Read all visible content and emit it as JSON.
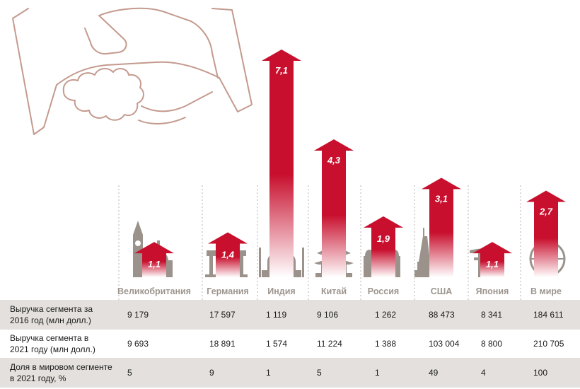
{
  "colors": {
    "arrow_top": "#c8102e",
    "arrow_bottom": "#ffffff",
    "icon": "#9a928b",
    "outline": "#c49a8e",
    "table_band": "#e3e0dd"
  },
  "icons": {
    "header": "handshake-icon",
    "per_category": [
      "big-ben-icon",
      "brandenburg-gate-icon",
      "taj-mahal-icon",
      "pagoda-icon",
      "st-basils-cathedral-icon",
      "statue-of-liberty-icon",
      "torii-gate-icon",
      "globe-icon"
    ]
  },
  "chart_data": {
    "type": "bar",
    "title": "",
    "xlabel": "",
    "ylabel": "",
    "categories": [
      "Великобритания",
      "Германия",
      "Индия",
      "Китай",
      "Россия",
      "США",
      "Япония",
      "В мире"
    ],
    "values": [
      1.1,
      1.4,
      7.1,
      4.3,
      1.9,
      3.1,
      1.1,
      2.7
    ],
    "value_labels": [
      "1,1",
      "1,4",
      "7,1",
      "4,3",
      "1,9",
      "3,1",
      "1,1",
      "2,7"
    ],
    "ylim": [
      0,
      7.1
    ],
    "grid": false,
    "legend": "none"
  },
  "table": {
    "rows": [
      {
        "label_lines": [
          "Выручка сегмента за",
          "2016 год (млн долл.)"
        ],
        "values": [
          "9 179",
          "17 597",
          "1 119",
          "9 106",
          "1 262",
          "88 473",
          "8 341",
          "184 611"
        ]
      },
      {
        "label_lines": [
          "Выручка сегмента в",
          "2021 году (млн долл.)"
        ],
        "values": [
          "9 693",
          "18 891",
          "1 574",
          "11 224",
          "1 388",
          "103 004",
          "8 800",
          "210 705"
        ]
      },
      {
        "label_lines": [
          "Доля в мировом сегменте",
          "в 2021 году, %"
        ],
        "values": [
          "5",
          "9",
          "1",
          "5",
          "1",
          "49",
          "4",
          "100"
        ]
      }
    ]
  }
}
